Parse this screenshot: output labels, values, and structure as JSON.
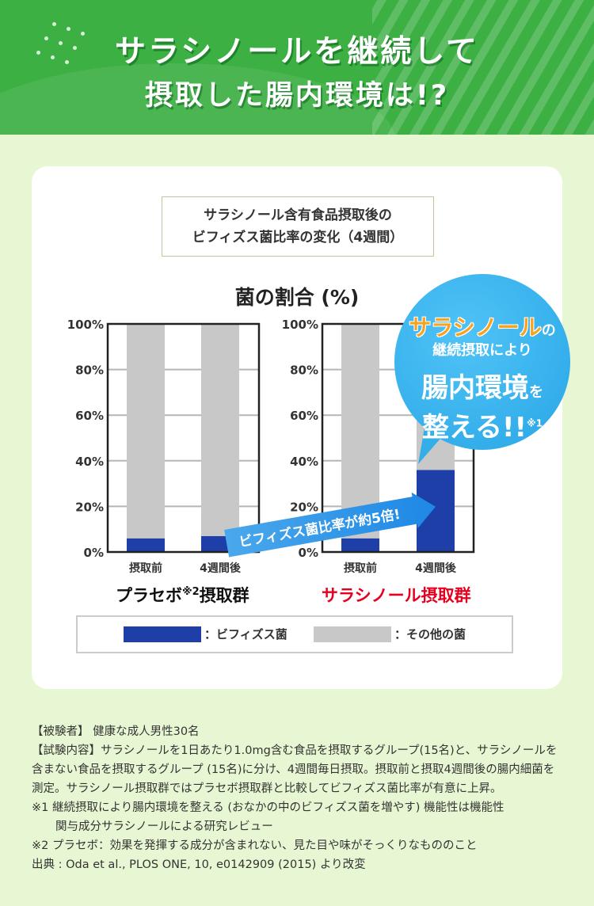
{
  "header": {
    "title_line1": "サラシノールを継続して",
    "title_line2": "摂取した腸内環境は!?"
  },
  "chart_box": {
    "subtitle_line1": "サラシノール含有食品摂取後の",
    "subtitle_line2": "ビフィズス菌比率の変化（4週間）",
    "title": "菌の割合 (%)"
  },
  "chart_data": [
    {
      "type": "bar",
      "stacked": true,
      "group_label": "プラセボ※2摂取群",
      "categories": [
        "摂取前",
        "4週間後"
      ],
      "series": [
        {
          "name": "ビフィズス菌",
          "values": [
            6,
            7
          ],
          "color": "#1e3fa8"
        },
        {
          "name": "その他の菌",
          "values": [
            94,
            93
          ],
          "color": "#c8c8c8"
        }
      ],
      "ylim": [
        0,
        100
      ],
      "yticks": [
        "0%",
        "20%",
        "40%",
        "60%",
        "80%",
        "100%"
      ]
    },
    {
      "type": "bar",
      "stacked": true,
      "group_label": "サラシノール摂取群",
      "categories": [
        "摂取前",
        "4週間後"
      ],
      "series": [
        {
          "name": "ビフィズス菌",
          "values": [
            6,
            36
          ],
          "color": "#1e3fa8"
        },
        {
          "name": "その他の菌",
          "values": [
            94,
            64
          ],
          "color": "#c8c8c8"
        }
      ],
      "ylim": [
        0,
        100
      ],
      "yticks": [
        "0%",
        "20%",
        "40%",
        "60%",
        "80%",
        "100%"
      ]
    }
  ],
  "group_labels": {
    "placebo_main": "プラセボ",
    "placebo_note": "※2",
    "placebo_tail": "摂取群",
    "salacinol": "サラシノール摂取群",
    "salacinol_color": "#e6001f"
  },
  "arrow_badge": "ビフィズス菌比率が約5倍!",
  "bubble": {
    "brand": "サラシノール",
    "no": "の",
    "line2": "継続摂取により",
    "line3": "腸内環境",
    "wo": "を",
    "line4": "整える!!",
    "note": "※1"
  },
  "legend": {
    "bifidus_label": "：ビフィズス菌",
    "other_label": "：その他の菌",
    "bifidus_color": "#1e3fa8",
    "other_color": "#c8c8c8"
  },
  "notes": {
    "subjects": "【被験者】 健康な成人男性30名",
    "content": "【試験内容】サラシノールを1日あたり1.0mg含む食品を摂取するグループ(15名)と、サラシノールを含まない食品を摂取するグループ (15名)に分け、4週間毎日摂取。摂取前と摂取4週間後の腸内細菌を測定。サラシノール摂取群ではプラセボ摂取群と比較してビフィズス菌比率が有意に上昇。",
    "note1_head": "※1 継続摂取により腸内環境を整える (おなかの中のビフィズス菌を増やす) 機能性は機能性",
    "note1_tail": "関与成分サラシノールによる研究レビュー",
    "note2": "※2 プラセボ：効果を発揮する成分が含まれない、見た目や味がそっくりなもののこと",
    "source": "出典 : Oda et al., PLOS ONE, 10, e0142909 (2015) より改変"
  }
}
